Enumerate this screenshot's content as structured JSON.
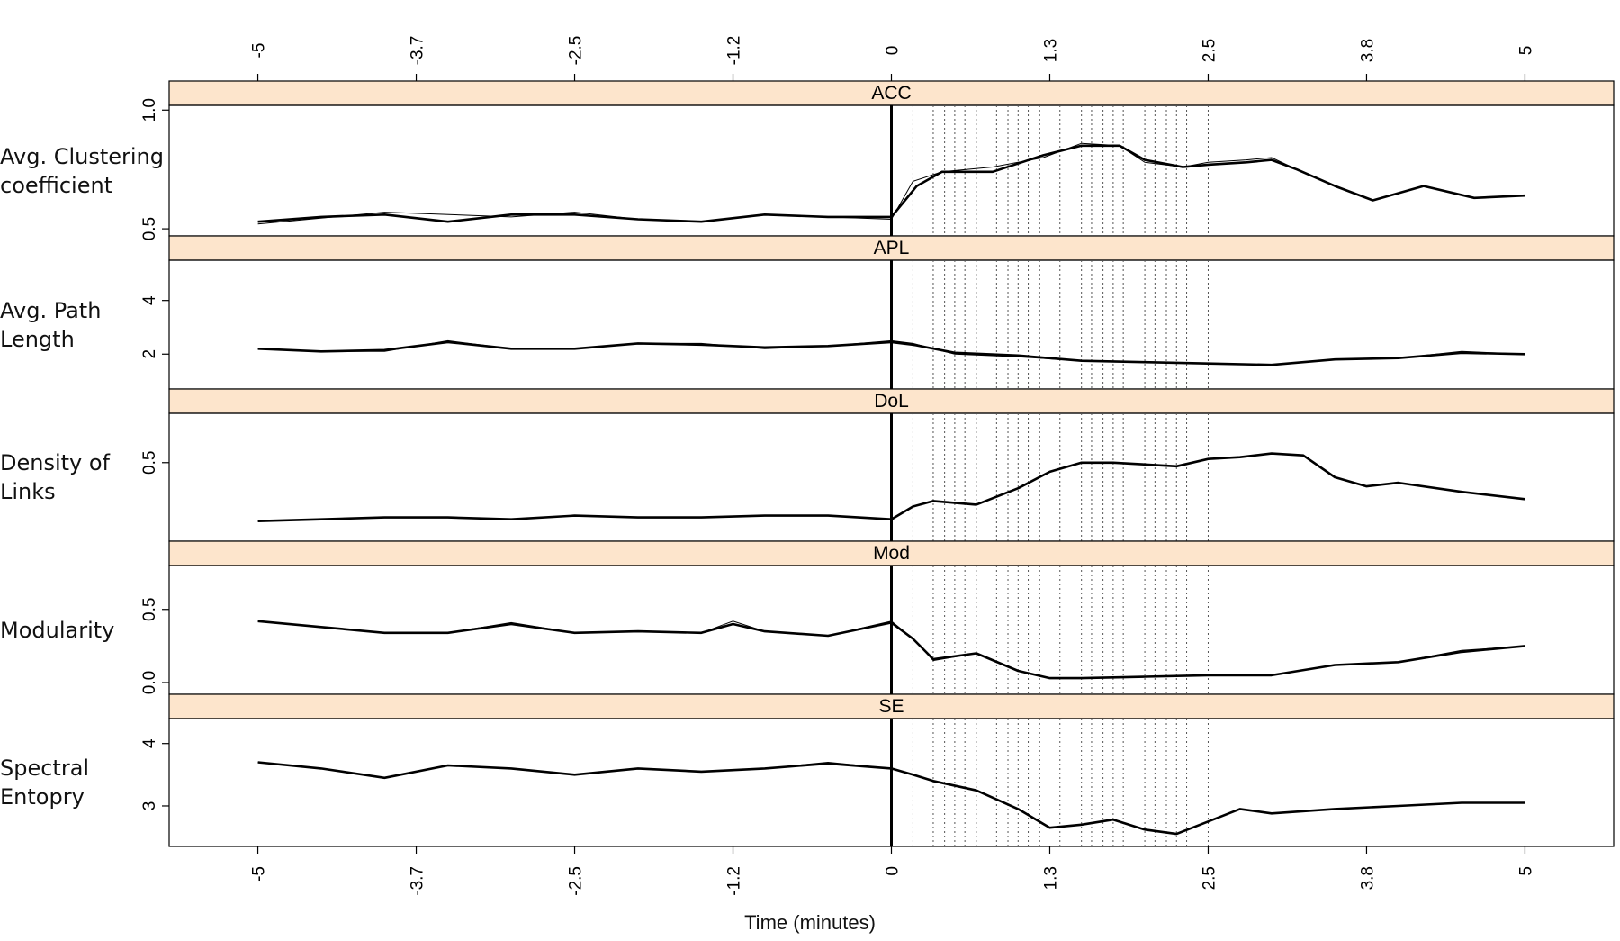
{
  "chart_data": {
    "type": "line",
    "xlabel": "Time (minutes)",
    "x_ticks": [
      "-5",
      "-3.7",
      "-2.5",
      "-1.2",
      "0",
      "1.3",
      "2.5",
      "3.8",
      "5"
    ],
    "x_tick_values": [
      -5,
      -3.75,
      -2.5,
      -1.25,
      0,
      1.25,
      2.5,
      3.75,
      5
    ],
    "xlim": [
      -5.7,
      5.7
    ],
    "vertical_marker_x": 0,
    "event_lines_x": [
      0.17,
      0.33,
      0.42,
      0.5,
      0.58,
      0.67,
      0.83,
      0.92,
      1.0,
      1.08,
      1.17,
      1.33,
      1.5,
      1.58,
      1.67,
      1.75,
      1.83,
      2.0,
      2.08,
      2.17,
      2.25,
      2.33,
      2.5
    ],
    "panels": [
      {
        "strip": "ACC",
        "ylabel_lines": [
          "Avg. Clustering",
          "coefficient"
        ],
        "yticks": [
          "0.5",
          "1.0"
        ],
        "ytick_values": [
          0.5,
          1.0
        ],
        "ylim": [
          0.47,
          1.02
        ],
        "tick_rotated": true,
        "raw_x": [
          -5.0,
          -4.0,
          -3.0,
          -2.5,
          -2.0,
          -1.5,
          -1.0,
          -0.5,
          0.0,
          0.17,
          0.4,
          0.8,
          1.2,
          1.5,
          1.8,
          2.0,
          2.3,
          2.5,
          2.8,
          3.0,
          3.2,
          3.5,
          3.8,
          4.2,
          4.6,
          5.0
        ],
        "raw_y": [
          0.52,
          0.57,
          0.55,
          0.57,
          0.54,
          0.53,
          0.56,
          0.55,
          0.54,
          0.7,
          0.74,
          0.76,
          0.8,
          0.86,
          0.85,
          0.78,
          0.76,
          0.78,
          0.79,
          0.8,
          0.75,
          0.68,
          0.62,
          0.68,
          0.63,
          0.64
        ],
        "smooth_x": [
          -5.0,
          -4.5,
          -4.0,
          -3.5,
          -3.0,
          -2.5,
          -2.0,
          -1.5,
          -1.0,
          -0.5,
          0.0,
          0.2,
          0.4,
          0.8,
          1.2,
          1.5,
          1.8,
          2.0,
          2.3,
          2.5,
          2.8,
          3.0,
          3.2,
          3.5,
          3.8,
          4.2,
          4.6,
          5.0
        ],
        "smooth_y": [
          0.53,
          0.55,
          0.56,
          0.53,
          0.56,
          0.56,
          0.54,
          0.53,
          0.56,
          0.55,
          0.55,
          0.68,
          0.74,
          0.74,
          0.81,
          0.85,
          0.85,
          0.79,
          0.76,
          0.77,
          0.78,
          0.79,
          0.75,
          0.68,
          0.62,
          0.68,
          0.63,
          0.64
        ]
      },
      {
        "strip": "APL",
        "ylabel_lines": [
          "Avg. Path",
          "Length"
        ],
        "yticks": [
          "2",
          "4"
        ],
        "ytick_values": [
          2,
          4
        ],
        "ylim": [
          0.7,
          5.5
        ],
        "tick_rotated": true,
        "raw_x": [
          -5.0,
          -4.5,
          -4.0,
          -3.5,
          -3.0,
          -2.5,
          -2.0,
          -1.5,
          -1.0,
          -0.5,
          0.0,
          0.17,
          0.5,
          1.0,
          1.5,
          2.0,
          2.5,
          3.0,
          3.5,
          4.0,
          4.5,
          5.0
        ],
        "raw_y": [
          2.2,
          2.1,
          2.1,
          2.5,
          2.2,
          2.2,
          2.4,
          2.4,
          2.2,
          2.3,
          2.5,
          2.4,
          2.0,
          1.9,
          1.75,
          1.7,
          1.65,
          1.6,
          1.8,
          1.85,
          2.1,
          2.0
        ],
        "smooth_x": [
          -5.0,
          -4.5,
          -4.0,
          -3.5,
          -3.0,
          -2.5,
          -2.0,
          -1.5,
          -1.0,
          -0.5,
          0.0,
          0.17,
          0.5,
          1.0,
          1.5,
          2.0,
          2.5,
          3.0,
          3.5,
          4.0,
          4.5,
          5.0
        ],
        "smooth_y": [
          2.2,
          2.1,
          2.15,
          2.45,
          2.2,
          2.2,
          2.4,
          2.35,
          2.25,
          2.3,
          2.45,
          2.35,
          2.05,
          1.95,
          1.75,
          1.7,
          1.65,
          1.6,
          1.8,
          1.85,
          2.05,
          2.0
        ]
      },
      {
        "strip": "DoL",
        "ylabel_lines": [
          "Density of",
          "Links"
        ],
        "yticks": [
          "0.5"
        ],
        "ytick_values": [
          0.5
        ],
        "ylim": [
          0.07,
          0.77
        ],
        "tick_rotated": true,
        "raw_x": [
          -5.0,
          -4.5,
          -4.0,
          -3.5,
          -3.0,
          -2.5,
          -2.0,
          -1.5,
          -1.0,
          -0.5,
          0.0,
          0.17,
          0.33,
          0.67,
          1.0,
          1.25,
          1.5,
          1.75,
          2.0,
          2.25,
          2.5,
          2.75,
          3.0,
          3.25,
          3.5,
          3.75,
          4.0,
          4.5,
          5.0
        ],
        "raw_y": [
          0.18,
          0.19,
          0.2,
          0.2,
          0.19,
          0.21,
          0.2,
          0.2,
          0.21,
          0.21,
          0.19,
          0.26,
          0.29,
          0.27,
          0.36,
          0.45,
          0.5,
          0.5,
          0.49,
          0.48,
          0.52,
          0.53,
          0.55,
          0.54,
          0.42,
          0.37,
          0.39,
          0.34,
          0.3
        ],
        "smooth_x": [
          -5.0,
          -4.5,
          -4.0,
          -3.5,
          -3.0,
          -2.5,
          -2.0,
          -1.5,
          -1.0,
          -0.5,
          0.0,
          0.17,
          0.33,
          0.67,
          1.0,
          1.25,
          1.5,
          1.75,
          2.0,
          2.25,
          2.5,
          2.75,
          3.0,
          3.25,
          3.5,
          3.75,
          4.0,
          4.5,
          5.0
        ],
        "smooth_y": [
          0.18,
          0.19,
          0.2,
          0.2,
          0.19,
          0.21,
          0.2,
          0.2,
          0.21,
          0.21,
          0.19,
          0.26,
          0.29,
          0.27,
          0.36,
          0.45,
          0.5,
          0.5,
          0.49,
          0.48,
          0.52,
          0.53,
          0.55,
          0.54,
          0.42,
          0.37,
          0.39,
          0.34,
          0.3
        ]
      },
      {
        "strip": "Mod",
        "ylabel_lines": [
          "Modularity"
        ],
        "yticks": [
          "0.0",
          "0.5"
        ],
        "ytick_values": [
          0.0,
          0.5
        ],
        "ylim": [
          -0.08,
          0.8
        ],
        "tick_rotated": true,
        "raw_x": [
          -5.0,
          -4.5,
          -4.0,
          -3.5,
          -3.0,
          -2.5,
          -2.0,
          -1.5,
          -1.25,
          -1.0,
          -0.5,
          0.0,
          0.17,
          0.33,
          0.67,
          1.0,
          1.25,
          1.5,
          2.0,
          2.5,
          3.0,
          3.5,
          4.0,
          4.5,
          5.0
        ],
        "raw_y": [
          0.42,
          0.38,
          0.34,
          0.34,
          0.41,
          0.34,
          0.35,
          0.34,
          0.42,
          0.35,
          0.32,
          0.42,
          0.3,
          0.15,
          0.2,
          0.08,
          0.03,
          0.03,
          0.04,
          0.05,
          0.05,
          0.12,
          0.14,
          0.22,
          0.25
        ],
        "smooth_x": [
          -5.0,
          -4.5,
          -4.0,
          -3.5,
          -3.0,
          -2.5,
          -2.0,
          -1.5,
          -1.25,
          -1.0,
          -0.5,
          0.0,
          0.17,
          0.33,
          0.67,
          1.0,
          1.25,
          1.5,
          2.0,
          2.5,
          3.0,
          3.5,
          4.0,
          4.5,
          5.0
        ],
        "smooth_y": [
          0.42,
          0.38,
          0.34,
          0.34,
          0.4,
          0.34,
          0.35,
          0.34,
          0.4,
          0.35,
          0.32,
          0.41,
          0.3,
          0.16,
          0.2,
          0.08,
          0.03,
          0.03,
          0.04,
          0.05,
          0.05,
          0.12,
          0.14,
          0.21,
          0.25
        ]
      },
      {
        "strip": "SE",
        "ylabel_lines": [
          "Spectral",
          "Entopry"
        ],
        "yticks": [
          "3",
          "4"
        ],
        "ytick_values": [
          3,
          4
        ],
        "ylim": [
          2.35,
          4.4
        ],
        "tick_rotated": true,
        "raw_x": [
          -5.0,
          -4.5,
          -4.0,
          -3.5,
          -3.0,
          -2.5,
          -2.0,
          -1.5,
          -1.0,
          -0.5,
          0.0,
          0.17,
          0.33,
          0.67,
          1.0,
          1.25,
          1.5,
          1.75,
          2.0,
          2.25,
          2.5,
          2.75,
          3.0,
          3.5,
          4.0,
          4.5,
          5.0
        ],
        "raw_y": [
          3.7,
          3.6,
          3.45,
          3.65,
          3.6,
          3.5,
          3.6,
          3.55,
          3.6,
          3.7,
          3.6,
          3.5,
          3.4,
          3.25,
          2.95,
          2.65,
          2.7,
          2.78,
          2.62,
          2.55,
          2.75,
          2.95,
          2.88,
          2.95,
          3.0,
          3.05,
          3.05
        ],
        "smooth_x": [
          -5.0,
          -4.5,
          -4.0,
          -3.5,
          -3.0,
          -2.5,
          -2.0,
          -1.5,
          -1.0,
          -0.5,
          0.0,
          0.17,
          0.33,
          0.67,
          1.0,
          1.25,
          1.5,
          1.75,
          2.0,
          2.25,
          2.5,
          2.75,
          3.0,
          3.5,
          4.0,
          4.5,
          5.0
        ],
        "smooth_y": [
          3.7,
          3.6,
          3.45,
          3.65,
          3.6,
          3.5,
          3.6,
          3.55,
          3.6,
          3.68,
          3.6,
          3.5,
          3.4,
          3.25,
          2.95,
          2.65,
          2.7,
          2.78,
          2.62,
          2.55,
          2.75,
          2.95,
          2.88,
          2.95,
          3.0,
          3.05,
          3.05
        ]
      }
    ],
    "colors": {
      "strip_fill": "#fde5cc",
      "line": "#000000",
      "event_line": "#555555"
    }
  }
}
